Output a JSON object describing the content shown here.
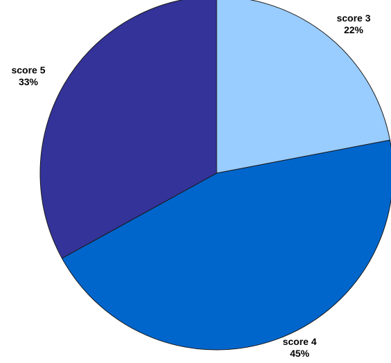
{
  "chart_data": {
    "type": "pie",
    "title": "",
    "start": "top",
    "direction": "clockwise",
    "slices": [
      {
        "name": "score 3",
        "value": 22,
        "label": "22%",
        "color": "#99ccff"
      },
      {
        "name": "score 4",
        "value": 45,
        "label": "45%",
        "color": "#0066cc"
      },
      {
        "name": "score 5",
        "value": 33,
        "label": "33%",
        "color": "#333399"
      }
    ]
  }
}
